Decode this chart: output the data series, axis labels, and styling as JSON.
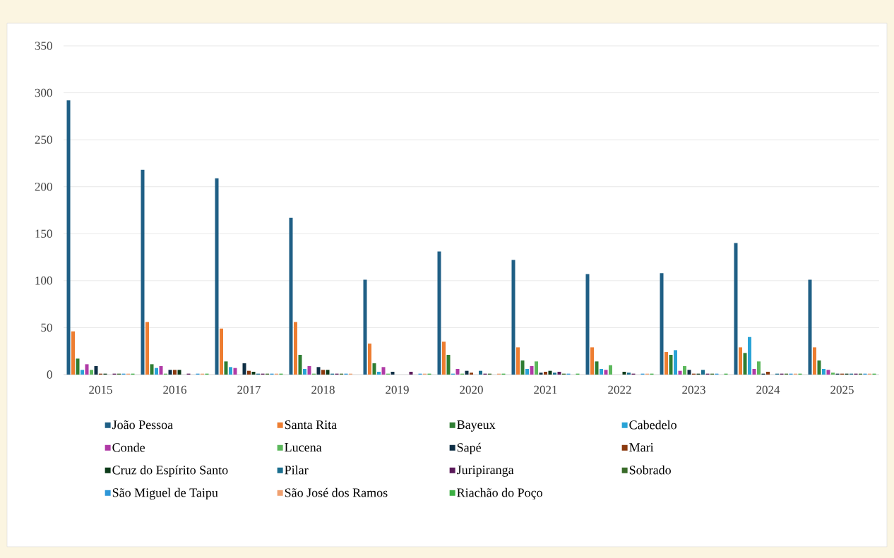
{
  "chart_data": {
    "type": "bar",
    "categories": [
      "2015",
      "2016",
      "2017",
      "2018",
      "2019",
      "2020",
      "2021",
      "2022",
      "2023",
      "2024",
      "2025"
    ],
    "series": [
      {
        "name": "João Pessoa",
        "color": "#1f5f85",
        "values": [
          292,
          218,
          209,
          167,
          101,
          131,
          122,
          107,
          108,
          140,
          101
        ]
      },
      {
        "name": "Santa Rita",
        "color": "#ed7d31",
        "values": [
          46,
          56,
          49,
          56,
          33,
          35,
          29,
          29,
          24,
          29,
          29
        ]
      },
      {
        "name": "Bayeux",
        "color": "#2e7d32",
        "values": [
          17,
          11,
          14,
          21,
          12,
          21,
          15,
          14,
          21,
          23,
          15
        ]
      },
      {
        "name": "Cabedelo",
        "color": "#29a3d6",
        "values": [
          5,
          7,
          8,
          6,
          3,
          1,
          6,
          6,
          26,
          40,
          6
        ]
      },
      {
        "name": "Conde",
        "color": "#b03aa6",
        "values": [
          11,
          9,
          7,
          9,
          8,
          6,
          9,
          5,
          4,
          6,
          5
        ]
      },
      {
        "name": "Lucena",
        "color": "#5cb85c",
        "values": [
          5,
          1,
          0,
          1,
          1,
          1,
          14,
          10,
          9,
          14,
          2
        ]
      },
      {
        "name": "Sapé",
        "color": "#0f2f45",
        "values": [
          9,
          5,
          12,
          8,
          3,
          4,
          2,
          0,
          5,
          1,
          1
        ]
      },
      {
        "name": "Mari",
        "color": "#8b3a0f",
        "values": [
          1,
          5,
          4,
          5,
          0,
          2,
          3,
          0,
          1,
          3,
          1
        ]
      },
      {
        "name": "Cruz do Espírito Santo",
        "color": "#0d3b1a",
        "values": [
          1,
          5,
          3,
          5,
          0,
          0,
          4,
          3,
          1,
          0,
          1
        ]
      },
      {
        "name": "Pilar",
        "color": "#1a6e8e",
        "values": [
          0,
          0,
          1,
          1,
          0,
          4,
          2,
          2,
          5,
          1,
          1
        ]
      },
      {
        "name": "Juripiranga",
        "color": "#5b1a5a",
        "values": [
          1,
          1,
          1,
          1,
          3,
          1,
          3,
          1,
          1,
          1,
          1
        ]
      },
      {
        "name": "Sobrado",
        "color": "#3a6b2a",
        "values": [
          1,
          0,
          1,
          1,
          0,
          1,
          1,
          0,
          1,
          1,
          1
        ]
      },
      {
        "name": "São Miguel de Taipu",
        "color": "#2e97d8",
        "values": [
          1,
          1,
          1,
          1,
          1,
          0,
          1,
          1,
          1,
          1,
          1
        ]
      },
      {
        "name": "São José dos Ramos",
        "color": "#f0a070",
        "values": [
          1,
          1,
          1,
          1,
          1,
          1,
          0,
          1,
          0,
          1,
          1
        ]
      },
      {
        "name": "Riachão do Poço",
        "color": "#3cb043",
        "values": [
          1,
          1,
          1,
          0,
          1,
          1,
          1,
          1,
          1,
          1,
          1
        ]
      }
    ],
    "ylim": [
      0,
      350
    ],
    "yticks": [
      0,
      50,
      100,
      150,
      200,
      250,
      300,
      350
    ],
    "grid": "y",
    "legend": "bottom"
  }
}
